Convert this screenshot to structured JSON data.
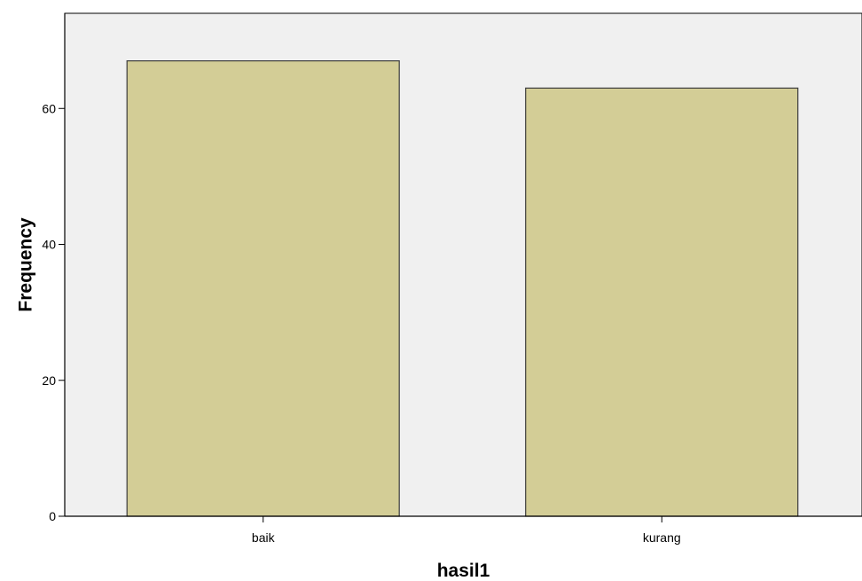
{
  "chart_data": {
    "type": "bar",
    "categories": [
      "baik",
      "kurang"
    ],
    "values": [
      67,
      63
    ],
    "xlabel": "hasil1",
    "ylabel": "Frequency",
    "ylim": [
      0,
      74
    ],
    "yticks": [
      0,
      20,
      40,
      60
    ],
    "grid": false,
    "colors": {
      "bar_fill": "#d3cd96",
      "bar_stroke": "#3c3c3c",
      "plot_background": "#f0f0f0",
      "axis": "#000000"
    }
  }
}
